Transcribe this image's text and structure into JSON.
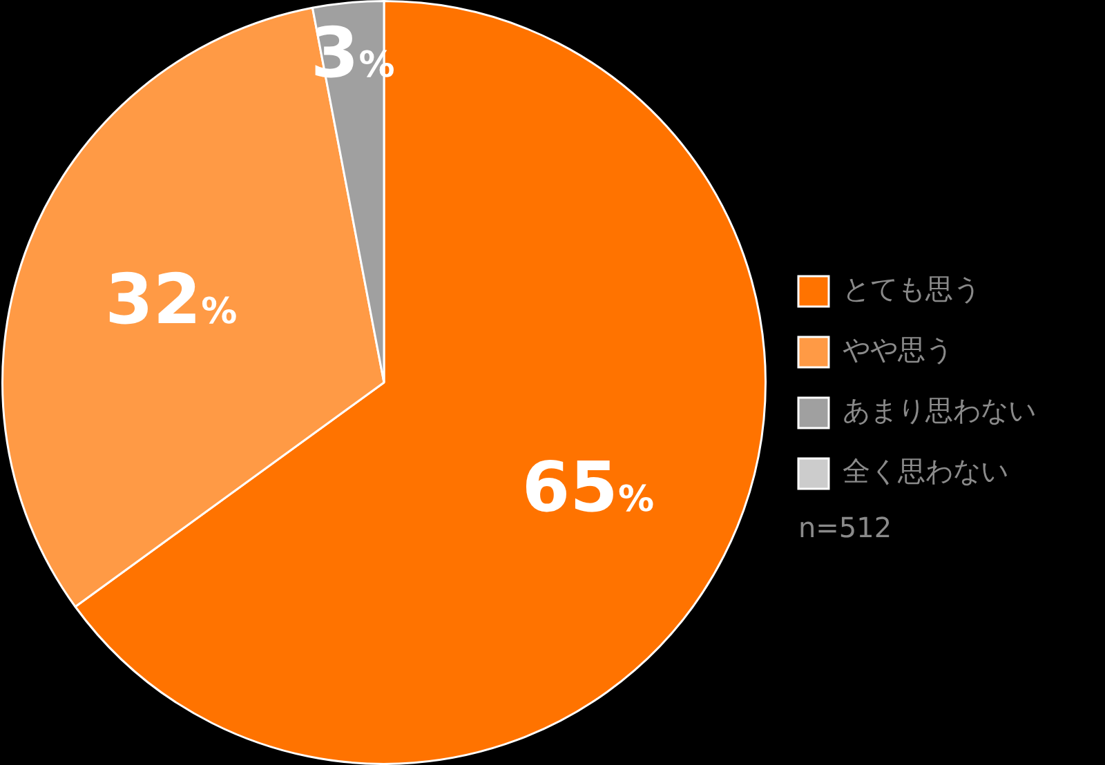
{
  "chart_data": {
    "type": "pie",
    "categories": [
      "とても思う",
      "やや思う",
      "あまり思わない",
      "全く思わない"
    ],
    "values": [
      65,
      32,
      3,
      0
    ],
    "colors": [
      "#ff7300",
      "#ff9a45",
      "#a0a0a0",
      "#cccccc"
    ],
    "value_labels": [
      "65%",
      "32%",
      "3%",
      null
    ],
    "legend": "right",
    "annotations": [
      "n=512"
    ]
  }
}
